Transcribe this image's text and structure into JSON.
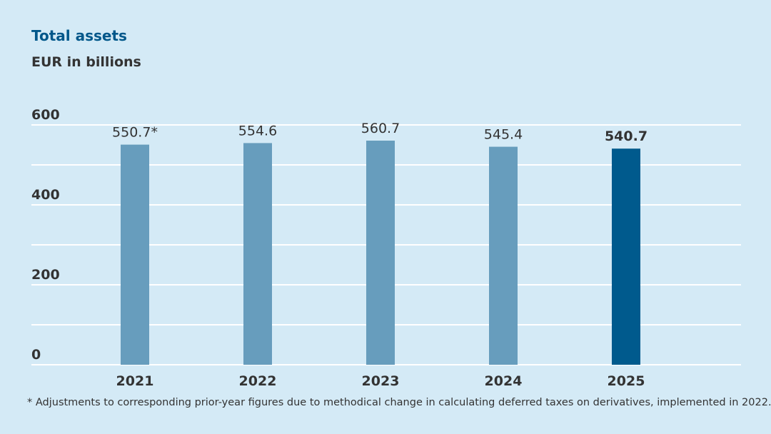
{
  "title": "Total assets",
  "subtitle": "EUR in billions",
  "footnote": "* Adjustments to corresponding prior-year figures due to methodical change in calculating deferred taxes on derivatives, implemented in 2022.",
  "colors": {
    "bar": "#679dbd",
    "highlight": "#005a8d",
    "grid": "#ffffff",
    "background": "#d4eaf6",
    "text": "#333333"
  },
  "chart_data": {
    "type": "bar",
    "categories": [
      "2021",
      "2022",
      "2023",
      "2024",
      "2025"
    ],
    "values": [
      550.7,
      554.6,
      560.7,
      545.4,
      540.7
    ],
    "value_labels": [
      "550.7*",
      "554.6",
      "560.7",
      "545.4",
      "540.7"
    ],
    "highlight_index": 4,
    "ylim": [
      0,
      600
    ],
    "yticks": [
      0,
      200,
      400,
      600
    ],
    "ytick_labels": [
      "0",
      "200",
      "400",
      "600"
    ],
    "gridlines": [
      0,
      100,
      200,
      300,
      400,
      500,
      600
    ],
    "grid": true
  }
}
